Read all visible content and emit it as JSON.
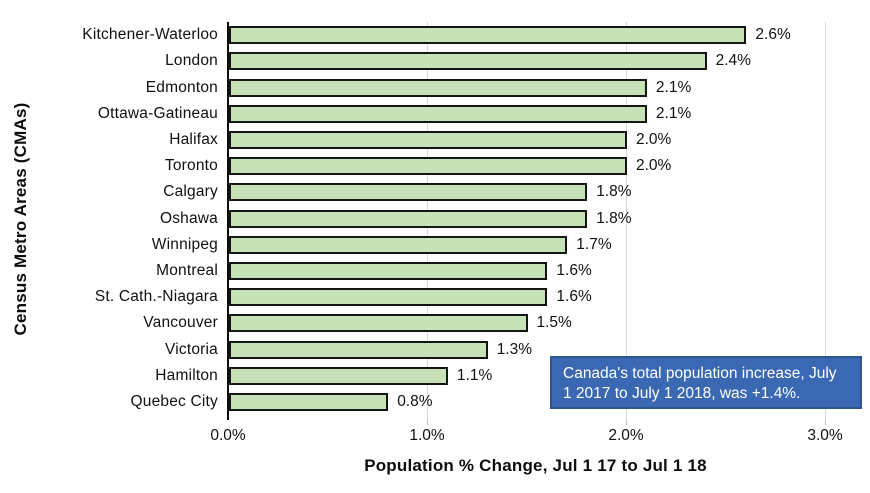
{
  "chart_data": {
    "type": "bar",
    "orientation": "horizontal",
    "categories": [
      "Kitchener-Waterloo",
      "London",
      "Edmonton",
      "Ottawa-Gatineau",
      "Halifax",
      "Toronto",
      "Calgary",
      "Oshawa",
      "Winnipeg",
      "Montreal",
      "St. Cath.-Niagara",
      "Vancouver",
      "Victoria",
      "Hamilton",
      "Quebec City"
    ],
    "values": [
      2.6,
      2.4,
      2.1,
      2.1,
      2.0,
      2.0,
      1.8,
      1.8,
      1.7,
      1.6,
      1.6,
      1.5,
      1.3,
      1.1,
      0.8
    ],
    "value_labels": [
      "2.6%",
      "2.4%",
      "2.1%",
      "2.1%",
      "2.0%",
      "2.0%",
      "1.8%",
      "1.8%",
      "1.7%",
      "1.6%",
      "1.6%",
      "1.5%",
      "1.3%",
      "1.1%",
      "0.8%"
    ],
    "xlabel": "Population % Change, Jul 1 17 to Jul 1 18",
    "ylabel": "Census Metro Areas (CMAs)",
    "x_ticks": [
      {
        "value": 0.0,
        "label": "0.0%"
      },
      {
        "value": 1.0,
        "label": "1.0%"
      },
      {
        "value": 2.0,
        "label": "2.0%"
      },
      {
        "value": 3.0,
        "label": "3.0%"
      }
    ],
    "xlim": [
      0,
      3.09
    ],
    "grid": "vertical-major",
    "annotation": "Canada's total population increase, July 1 2017 to July 1 2018, was +1.4%.",
    "colors": {
      "bar_fill": "#c8e2b8",
      "bar_border": "#141414",
      "gridline": "#d9d9d9",
      "axis_line": "#0d0d0d",
      "annotation_bg": "#3a68b2",
      "annotation_border": "#2e5491",
      "annotation_text": "#ffffff"
    }
  }
}
